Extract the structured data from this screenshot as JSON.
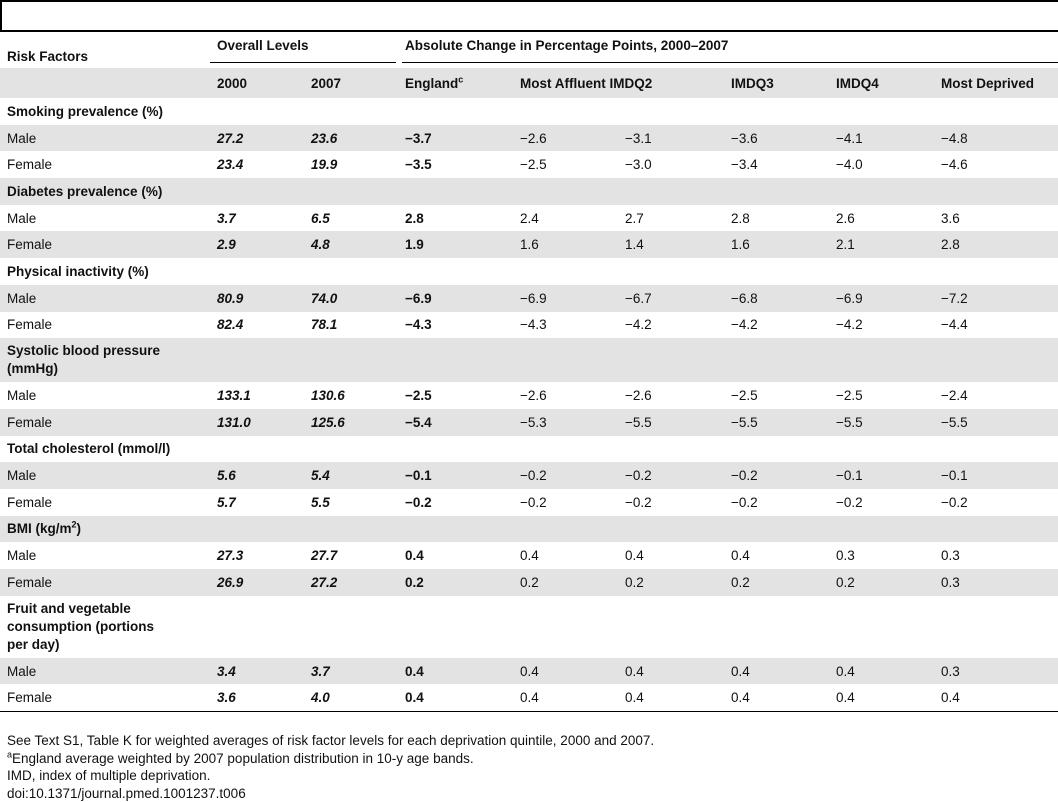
{
  "header": {
    "risk_factors": "Risk Factors",
    "overall_levels": "Overall Levels",
    "absolute_change": "Absolute Change in Percentage Points, 2000–2007",
    "col_2000": "2000",
    "col_2007": "2007",
    "england": "England",
    "england_sup": "c",
    "most_affluent": "Most Affluent",
    "imdq2": "IMDQ2",
    "imdq3": "IMDQ3",
    "imdq4": "IMDQ4",
    "most_deprived": "Most Deprived"
  },
  "sections": [
    {
      "title": "Smoking prevalence (%)",
      "rows": [
        {
          "label": "Male",
          "y2000": "27.2",
          "y2007": "23.6",
          "england": "−3.7",
          "q1": "−2.6",
          "q2": "−3.1",
          "q3": "−3.6",
          "q4": "−4.1",
          "q5": "−4.8"
        },
        {
          "label": "Female",
          "y2000": "23.4",
          "y2007": "19.9",
          "england": "−3.5",
          "q1": "−2.5",
          "q2": "−3.0",
          "q3": "−3.4",
          "q4": "−4.0",
          "q5": "−4.6"
        }
      ]
    },
    {
      "title": "Diabetes prevalence (%)",
      "rows": [
        {
          "label": "Male",
          "y2000": "3.7",
          "y2007": "6.5",
          "england": "2.8",
          "q1": "2.4",
          "q2": "2.7",
          "q3": "2.8",
          "q4": "2.6",
          "q5": "3.6"
        },
        {
          "label": "Female",
          "y2000": "2.9",
          "y2007": "4.8",
          "england": "1.9",
          "q1": "1.6",
          "q2": "1.4",
          "q3": "1.6",
          "q4": "2.1",
          "q5": "2.8"
        }
      ]
    },
    {
      "title": "Physical inactivity (%)",
      "rows": [
        {
          "label": "Male",
          "y2000": "80.9",
          "y2007": "74.0",
          "england": "−6.9",
          "q1": "−6.9",
          "q2": "−6.7",
          "q3": "−6.8",
          "q4": "−6.9",
          "q5": "−7.2"
        },
        {
          "label": "Female",
          "y2000": "82.4",
          "y2007": "78.1",
          "england": "−4.3",
          "q1": "−4.3",
          "q2": "−4.2",
          "q3": "−4.2",
          "q4": "−4.2",
          "q5": "−4.4"
        }
      ]
    },
    {
      "title_line1": "Systolic blood pressure",
      "title_line2": "(mmHg)",
      "rows": [
        {
          "label": "Male",
          "y2000": "133.1",
          "y2007": "130.6",
          "england": "−2.5",
          "q1": "−2.6",
          "q2": "−2.6",
          "q3": "−2.5",
          "q4": "−2.5",
          "q5": "−2.4"
        },
        {
          "label": "Female",
          "y2000": "131.0",
          "y2007": "125.6",
          "england": "−5.4",
          "q1": "−5.3",
          "q2": "−5.5",
          "q3": "−5.5",
          "q4": "−5.5",
          "q5": "−5.5"
        }
      ]
    },
    {
      "title": "Total cholesterol (mmol/l)",
      "rows": [
        {
          "label": "Male",
          "y2000": "5.6",
          "y2007": "5.4",
          "england": "−0.1",
          "q1": "−0.2",
          "q2": "−0.2",
          "q3": "−0.2",
          "q4": "−0.1",
          "q5": "−0.1"
        },
        {
          "label": "Female",
          "y2000": "5.7",
          "y2007": "5.5",
          "england": "−0.2",
          "q1": "−0.2",
          "q2": "−0.2",
          "q3": "−0.2",
          "q4": "−0.2",
          "q5": "−0.2"
        }
      ]
    },
    {
      "title_pre": "BMI (kg/m",
      "title_sup": "2",
      "title_post": ")",
      "rows": [
        {
          "label": "Male",
          "y2000": "27.3",
          "y2007": "27.7",
          "england": "0.4",
          "q1": "0.4",
          "q2": "0.4",
          "q3": "0.4",
          "q4": "0.3",
          "q5": "0.3"
        },
        {
          "label": "Female",
          "y2000": "26.9",
          "y2007": "27.2",
          "england": "0.2",
          "q1": "0.2",
          "q2": "0.2",
          "q3": "0.2",
          "q4": "0.2",
          "q5": "0.3"
        }
      ]
    },
    {
      "title_line1": "Fruit and vegetable",
      "title_line2": "consumption (portions",
      "title_line3": "per day)",
      "rows": [
        {
          "label": "Male",
          "y2000": "3.4",
          "y2007": "3.7",
          "england": "0.4",
          "q1": "0.4",
          "q2": "0.4",
          "q3": "0.4",
          "q4": "0.4",
          "q5": "0.3"
        },
        {
          "label": "Female",
          "y2000": "3.6",
          "y2007": "4.0",
          "england": "0.4",
          "q1": "0.4",
          "q2": "0.4",
          "q3": "0.4",
          "q4": "0.4",
          "q5": "0.4"
        }
      ]
    }
  ],
  "notes": {
    "line1": "See Text S1, Table K for weighted averages of risk factor levels for each deprivation quintile, 2000 and 2007.",
    "line2_sup": "a",
    "line2": "England average weighted by 2007 population distribution in 10-y age bands.",
    "line3": "IMD, index of multiple deprivation.",
    "line4": "doi:10.1371/journal.pmed.1001237.t006"
  }
}
